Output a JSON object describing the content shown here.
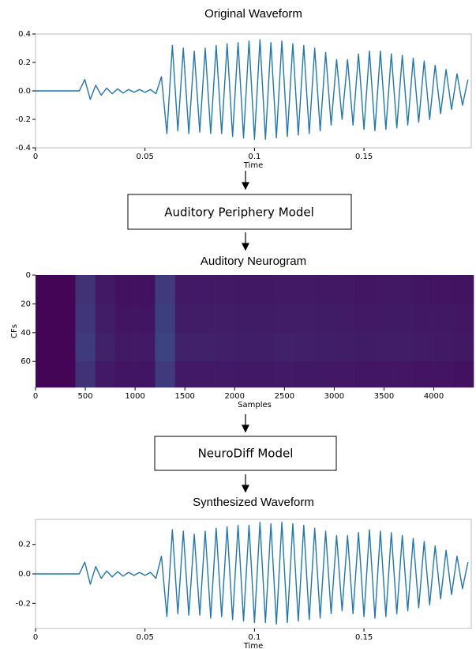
{
  "chart_data": [
    {
      "type": "line",
      "title": "Original Waveform",
      "xlabel": "Time",
      "color": "#1f77b4",
      "x": [
        0,
        0.0025,
        0.005,
        0.0075,
        0.01,
        0.0125,
        0.015,
        0.0175,
        0.02,
        0.0225,
        0.025,
        0.0275,
        0.03,
        0.0325,
        0.035,
        0.0375,
        0.04,
        0.0425,
        0.045,
        0.0475,
        0.05,
        0.0525,
        0.055,
        0.0575,
        0.06,
        0.0625,
        0.065,
        0.0675,
        0.07,
        0.0725,
        0.075,
        0.0775,
        0.08,
        0.0825,
        0.085,
        0.0875,
        0.09,
        0.0925,
        0.095,
        0.0975,
        0.1,
        0.1025,
        0.105,
        0.1075,
        0.11,
        0.1125,
        0.115,
        0.1175,
        0.12,
        0.1225,
        0.125,
        0.1275,
        0.13,
        0.1325,
        0.135,
        0.1375,
        0.14,
        0.1425,
        0.145,
        0.1475,
        0.15,
        0.1525,
        0.155,
        0.1575,
        0.16,
        0.1625,
        0.165,
        0.1675,
        0.17,
        0.1725,
        0.175,
        0.1775,
        0.18,
        0.1825,
        0.185,
        0.1875,
        0.19,
        0.1925,
        0.195,
        0.1975
      ],
      "values": [
        0,
        0,
        0,
        0,
        0,
        0,
        0,
        0,
        0,
        0.08,
        -0.06,
        0.04,
        -0.03,
        0.02,
        -0.02,
        0.015,
        -0.015,
        0.01,
        -0.01,
        0.01,
        -0.01,
        0.01,
        -0.02,
        0.1,
        -0.3,
        0.32,
        -0.28,
        0.3,
        -0.3,
        0.28,
        -0.29,
        0.3,
        -0.3,
        0.32,
        -0.3,
        0.33,
        -0.32,
        0.34,
        -0.33,
        0.35,
        -0.34,
        0.36,
        -0.34,
        0.34,
        -0.33,
        0.35,
        -0.32,
        0.33,
        -0.31,
        0.32,
        -0.3,
        0.3,
        -0.28,
        0.27,
        -0.24,
        0.22,
        -0.2,
        0.22,
        -0.24,
        0.26,
        -0.27,
        0.28,
        -0.28,
        0.28,
        -0.27,
        0.26,
        -0.26,
        0.25,
        -0.24,
        0.23,
        -0.22,
        0.21,
        -0.2,
        0.18,
        -0.16,
        0.15,
        -0.13,
        0.12,
        -0.1,
        0.08
      ],
      "xlim": [
        0,
        0.199
      ],
      "xticks": [
        0,
        0.05,
        0.1,
        0.15
      ],
      "ylim": [
        -0.4,
        0.4
      ],
      "yticks": [
        -0.4,
        -0.2,
        {
          "value": 0,
          "label": "0.0"
        },
        0.2,
        0.4
      ]
    },
    {
      "type": "heatmap",
      "title": "Auditory Neurogram",
      "xlabel": "Samples",
      "ylabel": "CFs",
      "colors": [
        "#440154",
        "#3b528b"
      ],
      "y_inverted": true,
      "x_bins": [
        0,
        200,
        400,
        600,
        800,
        1000,
        1200,
        1400,
        1600,
        1800,
        2000,
        2200,
        2400,
        2600,
        2800,
        3000,
        3200,
        3400,
        3600,
        3800,
        4000,
        4200,
        4400
      ],
      "y_bins": [
        0,
        20,
        40,
        60,
        78
      ],
      "values": [
        [
          0.05,
          0.05,
          0.6,
          0.3,
          0.2,
          0.2,
          0.7,
          0.3,
          0.3,
          0.3,
          0.28,
          0.28,
          0.3,
          0.3,
          0.28,
          0.27,
          0.26,
          0.27,
          0.27,
          0.25,
          0.24,
          0.22
        ],
        [
          0.05,
          0.05,
          0.65,
          0.35,
          0.25,
          0.25,
          0.75,
          0.35,
          0.35,
          0.34,
          0.33,
          0.33,
          0.35,
          0.34,
          0.33,
          0.32,
          0.3,
          0.31,
          0.31,
          0.29,
          0.28,
          0.26
        ],
        [
          0.05,
          0.05,
          0.7,
          0.4,
          0.3,
          0.3,
          0.8,
          0.4,
          0.4,
          0.38,
          0.37,
          0.37,
          0.4,
          0.38,
          0.36,
          0.35,
          0.33,
          0.34,
          0.34,
          0.32,
          0.3,
          0.28
        ],
        [
          0.05,
          0.05,
          0.6,
          0.3,
          0.25,
          0.25,
          0.7,
          0.3,
          0.3,
          0.3,
          0.28,
          0.28,
          0.3,
          0.29,
          0.28,
          0.27,
          0.26,
          0.26,
          0.26,
          0.24,
          0.23,
          0.21
        ]
      ],
      "xlim": [
        0,
        4400
      ],
      "xticks": [
        0,
        500,
        1000,
        1500,
        2000,
        2500,
        3000,
        3500,
        4000
      ],
      "ylim": [
        0,
        78
      ],
      "yticks": [
        0,
        20,
        40,
        60
      ]
    },
    {
      "type": "line",
      "title": "Synthesized Waveform",
      "xlabel": "Time",
      "color": "#1f77b4",
      "x": [
        0,
        0.0025,
        0.005,
        0.0075,
        0.01,
        0.0125,
        0.015,
        0.0175,
        0.02,
        0.0225,
        0.025,
        0.0275,
        0.03,
        0.0325,
        0.035,
        0.0375,
        0.04,
        0.0425,
        0.045,
        0.0475,
        0.05,
        0.0525,
        0.055,
        0.0575,
        0.06,
        0.0625,
        0.065,
        0.0675,
        0.07,
        0.0725,
        0.075,
        0.0775,
        0.08,
        0.0825,
        0.085,
        0.0875,
        0.09,
        0.0925,
        0.095,
        0.0975,
        0.1,
        0.1025,
        0.105,
        0.1075,
        0.11,
        0.1125,
        0.115,
        0.1175,
        0.12,
        0.1225,
        0.125,
        0.1275,
        0.13,
        0.1325,
        0.135,
        0.1375,
        0.14,
        0.1425,
        0.145,
        0.1475,
        0.15,
        0.1525,
        0.155,
        0.1575,
        0.16,
        0.1625,
        0.165,
        0.1675,
        0.17,
        0.1725,
        0.175,
        0.1775,
        0.18,
        0.1825,
        0.185,
        0.1875,
        0.19,
        0.1925,
        0.195,
        0.1975
      ],
      "values": [
        0,
        0,
        0,
        0,
        0,
        0,
        0,
        0,
        0,
        0.08,
        -0.07,
        0.05,
        -0.03,
        0.02,
        -0.02,
        0.015,
        -0.015,
        0.01,
        -0.01,
        0.01,
        -0.01,
        0.01,
        -0.03,
        0.12,
        -0.29,
        0.3,
        -0.27,
        0.29,
        -0.28,
        0.27,
        -0.28,
        0.29,
        -0.3,
        0.31,
        -0.29,
        0.32,
        -0.31,
        0.33,
        -0.32,
        0.33,
        -0.33,
        0.35,
        -0.33,
        0.34,
        -0.34,
        0.35,
        -0.33,
        0.34,
        -0.32,
        0.33,
        -0.31,
        0.31,
        -0.3,
        0.29,
        -0.27,
        0.26,
        -0.25,
        0.26,
        -0.27,
        0.28,
        -0.29,
        0.3,
        -0.3,
        0.29,
        -0.29,
        0.28,
        -0.27,
        0.26,
        -0.25,
        0.24,
        -0.23,
        0.22,
        -0.21,
        0.19,
        -0.17,
        0.16,
        -0.14,
        0.12,
        -0.1,
        0.08
      ],
      "xlim": [
        0,
        0.199
      ],
      "xticks": [
        0,
        0.05,
        0.1,
        0.15
      ],
      "ylim": [
        -0.37,
        0.37
      ],
      "yticks": [
        -0.2,
        {
          "value": 0,
          "label": "0.0"
        },
        0.2
      ]
    }
  ],
  "blocks": [
    "Auditory Periphery Model",
    "NeuroDiff Model"
  ]
}
